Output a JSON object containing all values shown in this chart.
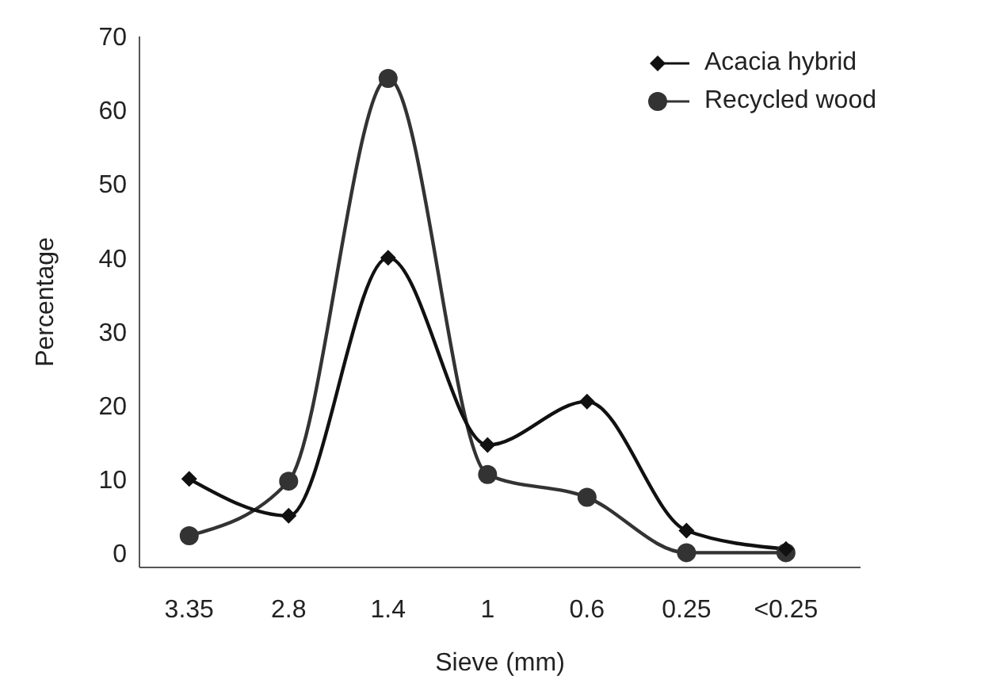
{
  "chart_data": {
    "type": "line",
    "xlabel": "Sieve (mm)",
    "ylabel": "Percentage",
    "categories": [
      "3.35",
      "2.8",
      "1.4",
      "1",
      "0.6",
      "0.25",
      "<0.25"
    ],
    "series": [
      {
        "name": "Acacia hybrid",
        "color": "#111111",
        "marker": "diamond",
        "values": [
          10,
          5,
          40,
          14.6,
          20.5,
          3,
          0.5
        ]
      },
      {
        "name": "Recycled wood",
        "color": "#333333",
        "marker": "circle",
        "values": [
          2.3,
          9.7,
          64.3,
          10.6,
          7.5,
          0,
          0
        ]
      }
    ],
    "ylim": [
      -2,
      70
    ],
    "yticks": [
      0,
      10,
      20,
      30,
      40,
      50,
      60,
      70
    ],
    "grid": false,
    "legend": "top right"
  }
}
